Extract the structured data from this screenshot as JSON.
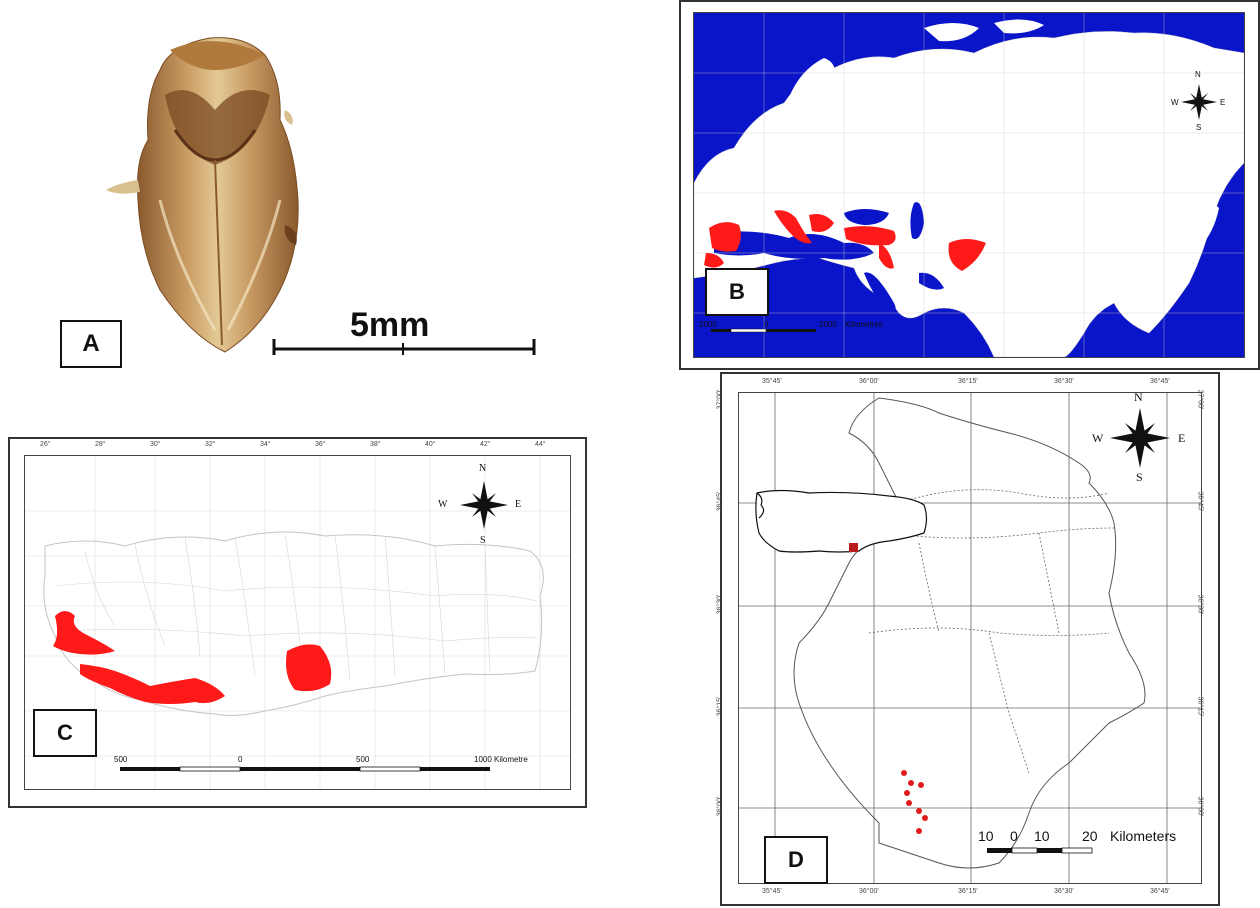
{
  "panel_a": {
    "label": "A",
    "scale_label": "5mm",
    "colors": {
      "body": "#b88550",
      "dark": "#6b3f1e",
      "light": "#e6cf9e"
    }
  },
  "panel_b": {
    "label": "B",
    "scale_left": "2000",
    "scale_mid": "0",
    "scale_right": "2000",
    "scale_unit": "Kilometres",
    "compass": {
      "n": "N",
      "s": "S",
      "e": "E",
      "w": "W"
    },
    "colors": {
      "water": "#0a14c8",
      "land": "#ffffff",
      "range": "#ff1a1a"
    }
  },
  "panel_c": {
    "label": "C",
    "scale_ticks": [
      "500",
      "0",
      "500",
      "1000"
    ],
    "scale_unit": "Kilometre",
    "compass": {
      "n": "N",
      "s": "S",
      "e": "E",
      "w": "W"
    },
    "top_ticks": [
      "26°",
      "28°",
      "30°",
      "32°",
      "34°",
      "36°",
      "38°",
      "40°",
      "42°",
      "44°"
    ],
    "colors": {
      "range": "#ff1a1a",
      "border": "#cccccc"
    }
  },
  "panel_d": {
    "label": "D",
    "top_ticks": [
      "35°45'",
      "36°00'",
      "36°15'",
      "36°30'",
      "36°45'"
    ],
    "bottom_ticks": [
      "35°45'",
      "36°00'",
      "36°15'",
      "36°30'",
      "36°45'"
    ],
    "left_ticks": [
      "37°00'",
      "36°45'",
      "36°30'",
      "36°15'",
      "36°00'"
    ],
    "right_ticks": [
      "37°00'",
      "36°45'",
      "36°30'",
      "36°15'",
      "36°00'"
    ],
    "scale_ticks": [
      "10",
      "0",
      "10",
      "20"
    ],
    "scale_unit": "Kilometers",
    "compass": {
      "n": "N",
      "s": "S",
      "e": "E",
      "w": "W"
    },
    "colors": {
      "points": "#e01b1b"
    }
  }
}
